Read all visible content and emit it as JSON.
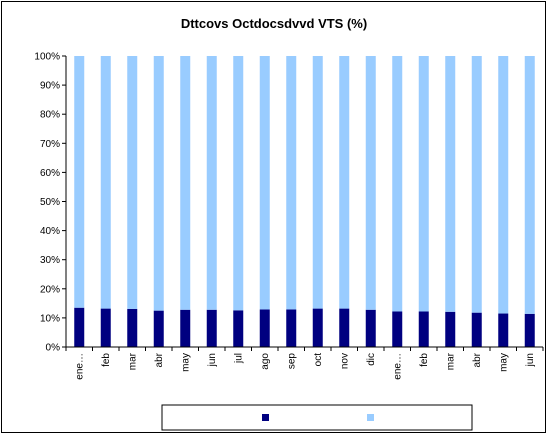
{
  "chart_data": {
    "type": "bar",
    "stacked": "percent",
    "title": "Dttcovs Octdocsdvvd VTS (%)",
    "categories": [
      "ene…",
      "feb",
      "mar",
      "abr",
      "may",
      "jun",
      "jul",
      "ago",
      "sep",
      "oct",
      "nov",
      "dic",
      "ene…",
      "feb",
      "mar",
      "abr",
      "may",
      "jun"
    ],
    "series": [
      {
        "color": "#000080",
        "values": [
          13.5,
          13.2,
          13.1,
          12.5,
          12.8,
          12.8,
          12.6,
          12.9,
          12.9,
          13.2,
          13.2,
          12.8,
          12.2,
          12.2,
          12.1,
          11.8,
          11.5,
          11.4
        ]
      },
      {
        "color": "#99ccff",
        "values": [
          86.5,
          86.8,
          86.9,
          87.5,
          87.2,
          87.2,
          87.4,
          87.1,
          87.1,
          86.8,
          86.8,
          87.2,
          87.8,
          87.8,
          87.9,
          88.2,
          88.5,
          88.6
        ]
      }
    ],
    "ylim": [
      0,
      100
    ],
    "yticks": [
      "0%",
      "10%",
      "20%",
      "30%",
      "40%",
      "50%",
      "60%",
      "70%",
      "80%",
      "90%",
      "100%"
    ],
    "grid": false,
    "legend": {
      "position": "bottom"
    },
    "plot_background": "#ffffff"
  }
}
